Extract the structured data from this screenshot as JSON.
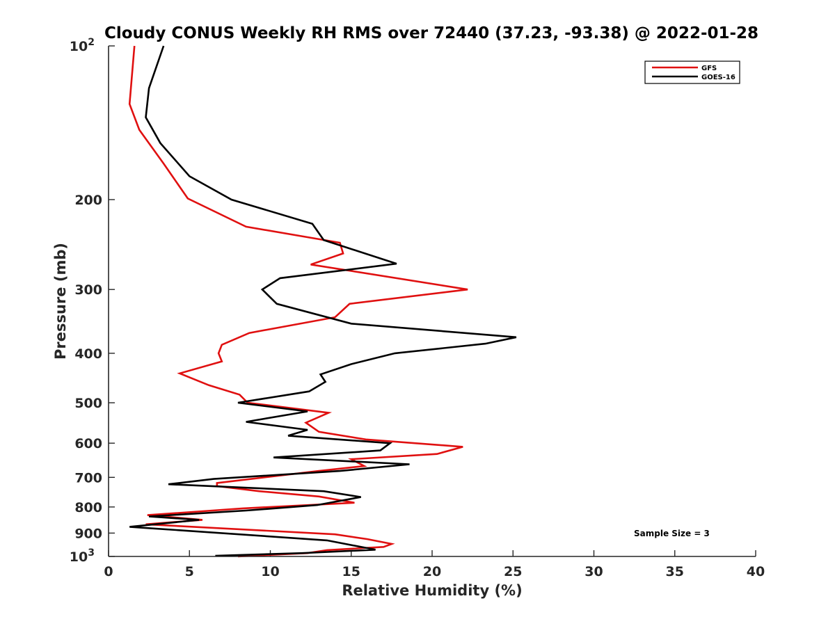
{
  "chart_data": {
    "type": "line",
    "title": "Cloudy CONUS Weekly RH RMS over 72440 (37.23, -93.38) @ 2022-01-28",
    "xlabel": "Relative Humidity (%)",
    "ylabel": "Pressure (mb)",
    "xlim": [
      0,
      40
    ],
    "ylim": [
      100,
      1000
    ],
    "y_scale": "log",
    "y_reversed": true,
    "x_ticks": [
      0,
      5,
      10,
      15,
      20,
      25,
      30,
      35,
      40
    ],
    "x_tick_labels": [
      "0",
      "5",
      "10",
      "15",
      "20",
      "25",
      "30",
      "35",
      "40"
    ],
    "y_ticks": [
      100,
      200,
      300,
      400,
      500,
      600,
      700,
      800,
      900,
      1000
    ],
    "y_tick_labels": [
      "10^2",
      "200",
      "300",
      "400",
      "500",
      "600",
      "700",
      "800",
      "900",
      "10^3"
    ],
    "grid": false,
    "legend_position": "top-right",
    "annotation": "Sample Size = 3",
    "series": [
      {
        "name": "GFS",
        "color": "#e01010",
        "points": [
          [
            1.6,
            100
          ],
          [
            1.3,
            130
          ],
          [
            1.9,
            146
          ],
          [
            3.4,
            170
          ],
          [
            4.9,
            199
          ],
          [
            8.5,
            226
          ],
          [
            14.3,
            243
          ],
          [
            14.5,
            255
          ],
          [
            12.5,
            268
          ],
          [
            22.2,
            300
          ],
          [
            14.9,
            320
          ],
          [
            14.0,
            340
          ],
          [
            8.7,
            365
          ],
          [
            7.0,
            385
          ],
          [
            6.8,
            400
          ],
          [
            7.0,
            415
          ],
          [
            4.4,
            438
          ],
          [
            6.2,
            462
          ],
          [
            8.1,
            482
          ],
          [
            8.6,
            500
          ],
          [
            13.6,
            523
          ],
          [
            12.2,
            547
          ],
          [
            13.0,
            570
          ],
          [
            15.9,
            590
          ],
          [
            21.9,
            610
          ],
          [
            20.3,
            630
          ],
          [
            15.0,
            645
          ],
          [
            15.8,
            665
          ],
          [
            13.0,
            680
          ],
          [
            6.7,
            718
          ],
          [
            6.7,
            728
          ],
          [
            9.3,
            745
          ],
          [
            13.0,
            763
          ],
          [
            15.2,
            785
          ],
          [
            8.3,
            805
          ],
          [
            2.4,
            830
          ],
          [
            5.8,
            848
          ],
          [
            2.3,
            865
          ],
          [
            14.0,
            905
          ],
          [
            16.0,
            925
          ],
          [
            17.5,
            945
          ],
          [
            17.0,
            958
          ],
          [
            13.5,
            972
          ],
          [
            12.3,
            985
          ],
          [
            8.0,
            1000
          ]
        ]
      },
      {
        "name": "GOES-16",
        "color": "#000000",
        "points": [
          [
            3.4,
            100
          ],
          [
            2.5,
            121
          ],
          [
            2.3,
            138
          ],
          [
            3.2,
            155
          ],
          [
            5.0,
            180
          ],
          [
            7.6,
            200
          ],
          [
            12.6,
            223
          ],
          [
            13.3,
            240
          ],
          [
            17.8,
            267
          ],
          [
            10.6,
            285
          ],
          [
            9.5,
            300
          ],
          [
            10.4,
            320
          ],
          [
            15.0,
            350
          ],
          [
            25.2,
            372
          ],
          [
            23.3,
            383
          ],
          [
            17.7,
            400
          ],
          [
            15.0,
            420
          ],
          [
            13.1,
            440
          ],
          [
            13.4,
            455
          ],
          [
            12.4,
            475
          ],
          [
            8.0,
            500
          ],
          [
            12.3,
            520
          ],
          [
            8.5,
            545
          ],
          [
            12.3,
            565
          ],
          [
            11.1,
            580
          ],
          [
            17.4,
            600
          ],
          [
            16.8,
            620
          ],
          [
            10.2,
            640
          ],
          [
            18.6,
            660
          ],
          [
            14.3,
            680
          ],
          [
            6.5,
            705
          ],
          [
            3.7,
            722
          ],
          [
            13.3,
            745
          ],
          [
            15.6,
            765
          ],
          [
            12.9,
            793
          ],
          [
            8.5,
            813
          ],
          [
            2.5,
            835
          ],
          [
            5.6,
            848
          ],
          [
            1.3,
            875
          ],
          [
            13.5,
            930
          ],
          [
            16.5,
            970
          ],
          [
            12.0,
            985
          ],
          [
            6.6,
            997
          ]
        ]
      }
    ]
  }
}
